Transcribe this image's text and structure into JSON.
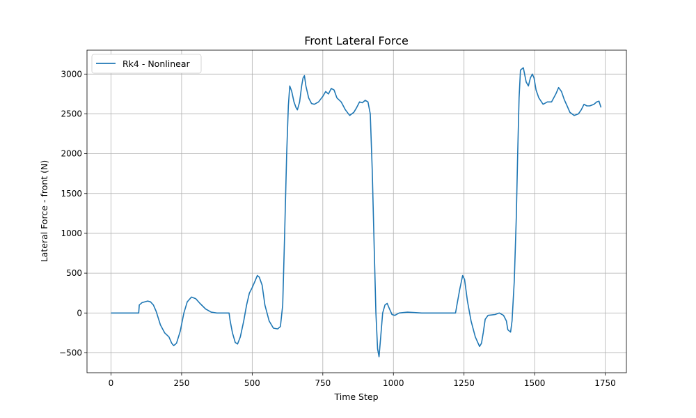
{
  "chart_data": {
    "type": "line",
    "title": "Front Lateral Force",
    "xlabel": "Time Step",
    "ylabel": "Lateral Force - front (N)",
    "xlim": [
      -85,
      1825
    ],
    "ylim": [
      -750,
      3300
    ],
    "xticks": [
      0,
      250,
      500,
      750,
      1000,
      1250,
      1500,
      1750
    ],
    "yticks": [
      -500,
      0,
      500,
      1000,
      1500,
      2000,
      2500,
      3000
    ],
    "grid": true,
    "legend_position": "top-left",
    "series": [
      {
        "name": "Rk4 - Nonlinear",
        "color": "#1f77b4",
        "points": [
          [
            0,
            0
          ],
          [
            98,
            0
          ],
          [
            100,
            100
          ],
          [
            110,
            130
          ],
          [
            130,
            150
          ],
          [
            140,
            140
          ],
          [
            150,
            100
          ],
          [
            160,
            20
          ],
          [
            175,
            -150
          ],
          [
            190,
            -250
          ],
          [
            205,
            -300
          ],
          [
            215,
            -380
          ],
          [
            222,
            -410
          ],
          [
            232,
            -380
          ],
          [
            245,
            -230
          ],
          [
            258,
            0
          ],
          [
            270,
            140
          ],
          [
            285,
            200
          ],
          [
            300,
            180
          ],
          [
            315,
            120
          ],
          [
            335,
            50
          ],
          [
            355,
            10
          ],
          [
            375,
            0
          ],
          [
            418,
            0
          ],
          [
            422,
            -100
          ],
          [
            430,
            -250
          ],
          [
            440,
            -370
          ],
          [
            448,
            -390
          ],
          [
            458,
            -300
          ],
          [
            470,
            -100
          ],
          [
            480,
            100
          ],
          [
            490,
            250
          ],
          [
            500,
            320
          ],
          [
            510,
            400
          ],
          [
            518,
            470
          ],
          [
            525,
            450
          ],
          [
            535,
            350
          ],
          [
            545,
            100
          ],
          [
            560,
            -100
          ],
          [
            575,
            -190
          ],
          [
            590,
            -200
          ],
          [
            600,
            -170
          ],
          [
            608,
            100
          ],
          [
            615,
            1000
          ],
          [
            622,
            2000
          ],
          [
            628,
            2600
          ],
          [
            633,
            2850
          ],
          [
            640,
            2780
          ],
          [
            648,
            2650
          ],
          [
            655,
            2580
          ],
          [
            660,
            2550
          ],
          [
            668,
            2650
          ],
          [
            675,
            2850
          ],
          [
            680,
            2950
          ],
          [
            685,
            2980
          ],
          [
            690,
            2850
          ],
          [
            700,
            2700
          ],
          [
            710,
            2630
          ],
          [
            720,
            2620
          ],
          [
            735,
            2650
          ],
          [
            750,
            2720
          ],
          [
            760,
            2780
          ],
          [
            770,
            2750
          ],
          [
            780,
            2820
          ],
          [
            790,
            2800
          ],
          [
            800,
            2700
          ],
          [
            815,
            2650
          ],
          [
            830,
            2550
          ],
          [
            845,
            2480
          ],
          [
            860,
            2520
          ],
          [
            870,
            2580
          ],
          [
            880,
            2650
          ],
          [
            890,
            2640
          ],
          [
            900,
            2670
          ],
          [
            910,
            2650
          ],
          [
            918,
            2500
          ],
          [
            925,
            1800
          ],
          [
            932,
            800
          ],
          [
            938,
            0
          ],
          [
            944,
            -450
          ],
          [
            949,
            -550
          ],
          [
            955,
            -300
          ],
          [
            962,
            0
          ],
          [
            970,
            100
          ],
          [
            978,
            120
          ],
          [
            985,
            60
          ],
          [
            995,
            -20
          ],
          [
            1005,
            -30
          ],
          [
            1020,
            0
          ],
          [
            1050,
            10
          ],
          [
            1100,
            0
          ],
          [
            1220,
            0
          ],
          [
            1225,
            100
          ],
          [
            1235,
            300
          ],
          [
            1245,
            470
          ],
          [
            1252,
            420
          ],
          [
            1262,
            150
          ],
          [
            1275,
            -100
          ],
          [
            1290,
            -300
          ],
          [
            1305,
            -420
          ],
          [
            1312,
            -380
          ],
          [
            1318,
            -250
          ],
          [
            1325,
            -80
          ],
          [
            1335,
            -30
          ],
          [
            1360,
            -20
          ],
          [
            1375,
            0
          ],
          [
            1390,
            -30
          ],
          [
            1400,
            -100
          ],
          [
            1405,
            -210
          ],
          [
            1415,
            -240
          ],
          [
            1420,
            -100
          ],
          [
            1428,
            400
          ],
          [
            1435,
            1200
          ],
          [
            1440,
            2000
          ],
          [
            1445,
            2700
          ],
          [
            1450,
            3050
          ],
          [
            1460,
            3080
          ],
          [
            1470,
            2900
          ],
          [
            1478,
            2850
          ],
          [
            1485,
            2950
          ],
          [
            1492,
            3000
          ],
          [
            1498,
            2950
          ],
          [
            1505,
            2800
          ],
          [
            1515,
            2700
          ],
          [
            1530,
            2620
          ],
          [
            1545,
            2650
          ],
          [
            1560,
            2650
          ],
          [
            1575,
            2750
          ],
          [
            1585,
            2830
          ],
          [
            1595,
            2780
          ],
          [
            1605,
            2680
          ],
          [
            1615,
            2600
          ],
          [
            1625,
            2520
          ],
          [
            1640,
            2480
          ],
          [
            1655,
            2500
          ],
          [
            1665,
            2550
          ],
          [
            1675,
            2620
          ],
          [
            1685,
            2600
          ],
          [
            1695,
            2600
          ],
          [
            1710,
            2620
          ],
          [
            1720,
            2650
          ],
          [
            1728,
            2660
          ],
          [
            1735,
            2580
          ]
        ]
      }
    ]
  }
}
